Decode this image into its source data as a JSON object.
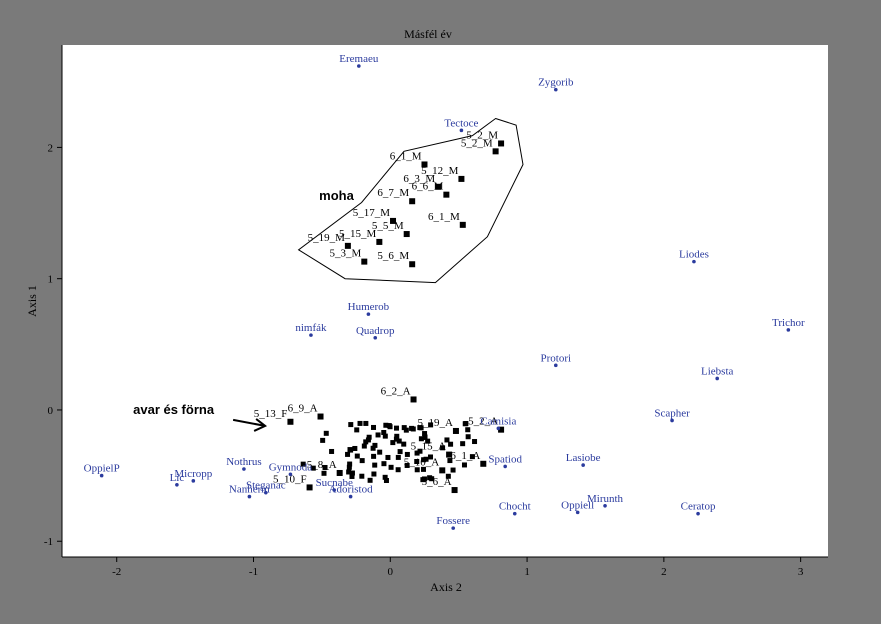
{
  "window": {
    "background_color": "#7a7a7a"
  },
  "chart_data": {
    "type": "scatter",
    "title": "Másfél év",
    "xlabel": "Axis 2",
    "ylabel": "Axis 1",
    "xlim": [
      -2.4,
      3.2
    ],
    "ylim": [
      -1.12,
      2.78
    ],
    "xticks": [
      -2,
      -1,
      0,
      1,
      2,
      3
    ],
    "yticks": [
      -1,
      0,
      1,
      2
    ],
    "xtick_labels": [
      "-2",
      "-1",
      "0",
      "1",
      "2",
      "3"
    ],
    "ytick_labels": [
      "-1",
      "0",
      "1",
      "2"
    ],
    "grid": false,
    "plot_background": "#ffffff",
    "species_color": "#2b3b9e",
    "site_color": "#000000",
    "species": [
      {
        "label": "Eremaeu",
        "x": -0.23,
        "y": 2.62
      },
      {
        "label": "Zygorib",
        "x": 1.21,
        "y": 2.44
      },
      {
        "label": "Tectoce",
        "x": 0.52,
        "y": 2.13
      },
      {
        "label": "Liodes",
        "x": 2.22,
        "y": 1.13
      },
      {
        "label": "Humerob",
        "x": -0.16,
        "y": 0.73
      },
      {
        "label": "nimfák",
        "x": -0.58,
        "y": 0.57
      },
      {
        "label": "Quadrop",
        "x": -0.11,
        "y": 0.55
      },
      {
        "label": "Trichor",
        "x": 2.91,
        "y": 0.61
      },
      {
        "label": "Protori",
        "x": 1.21,
        "y": 0.34
      },
      {
        "label": "Liebsta",
        "x": 2.39,
        "y": 0.24
      },
      {
        "label": "Scapher",
        "x": 2.06,
        "y": -0.08
      },
      {
        "label": "Camisia",
        "x": 0.79,
        "y": -0.14
      },
      {
        "label": "Lasiobe",
        "x": 1.41,
        "y": -0.42
      },
      {
        "label": "Nothrus",
        "x": -1.07,
        "y": -0.45
      },
      {
        "label": "Gymnoda",
        "x": -0.73,
        "y": -0.49
      },
      {
        "label": "Spatiod",
        "x": 0.84,
        "y": -0.43
      },
      {
        "label": "OppielP",
        "x": -2.11,
        "y": -0.5
      },
      {
        "label": "Micropp",
        "x": -1.44,
        "y": -0.54
      },
      {
        "label": "Lic",
        "x": -1.56,
        "y": -0.57
      },
      {
        "label": "Sucnabe",
        "x": -0.41,
        "y": -0.61
      },
      {
        "label": "Nanherm",
        "x": -1.03,
        "y": -0.66
      },
      {
        "label": "Steganac",
        "x": -0.91,
        "y": -0.63
      },
      {
        "label": "Adoristod",
        "x": -0.29,
        "y": -0.66
      },
      {
        "label": "Fossere",
        "x": 0.46,
        "y": -0.9
      },
      {
        "label": "Mirunth",
        "x": 1.57,
        "y": -0.73
      },
      {
        "label": "Oppiell",
        "x": 1.37,
        "y": -0.78
      },
      {
        "label": "Ceratop",
        "x": 2.25,
        "y": -0.79
      },
      {
        "label": "Chocht",
        "x": 0.91,
        "y": -0.79
      }
    ],
    "sites": [
      {
        "label": "5_2_M",
        "x": 0.81,
        "y": 2.03
      },
      {
        "label": "5_2_M",
        "x": 0.77,
        "y": 1.97
      },
      {
        "label": "6_1_M",
        "x": 0.25,
        "y": 1.87
      },
      {
        "label": "5_12_M",
        "x": 0.52,
        "y": 1.76
      },
      {
        "label": "6_3_M",
        "x": 0.35,
        "y": 1.7
      },
      {
        "label": "6_6_M",
        "x": 0.41,
        "y": 1.64
      },
      {
        "label": "6_7_M",
        "x": 0.16,
        "y": 1.59
      },
      {
        "label": "5_17_M",
        "x": 0.02,
        "y": 1.44
      },
      {
        "label": "5_5_M",
        "x": 0.12,
        "y": 1.34
      },
      {
        "label": "6_1_M",
        "x": 0.53,
        "y": 1.41
      },
      {
        "label": "5_19_M",
        "x": -0.31,
        "y": 1.25
      },
      {
        "label": "5_15_M",
        "x": -0.08,
        "y": 1.28
      },
      {
        "label": "5_3_M",
        "x": -0.19,
        "y": 1.13
      },
      {
        "label": "5_6_M",
        "x": 0.16,
        "y": 1.11
      },
      {
        "label": "6_2_A",
        "x": 0.17,
        "y": 0.08
      },
      {
        "label": "5_13_F",
        "x": -0.73,
        "y": -0.09
      },
      {
        "label": "6_9_A",
        "x": -0.51,
        "y": -0.05
      },
      {
        "label": "5_19_A",
        "x": 0.48,
        "y": -0.16
      },
      {
        "label": "5_2_A",
        "x": 0.81,
        "y": -0.15
      },
      {
        "label": "5_15_A",
        "x": 0.43,
        "y": -0.34
      },
      {
        "label": "5_8_A",
        "x": -0.37,
        "y": -0.48
      },
      {
        "label": "6_1_A",
        "x": 0.68,
        "y": -0.41
      },
      {
        "label": "5_10_F",
        "x": -0.59,
        "y": -0.59
      },
      {
        "label": "5_10_A",
        "x": 0.38,
        "y": -0.46
      },
      {
        "label": "5_6_A",
        "x": 0.47,
        "y": -0.61
      }
    ],
    "cluster_marks": {
      "count": 95,
      "center_x": 0.05,
      "center_y": -0.32,
      "spread_x": 0.52,
      "spread_y": 0.22
    },
    "annotations": [
      {
        "text": "moha",
        "x": -0.52,
        "y": 1.6
      },
      {
        "text": "avar és förna",
        "x": -1.88,
        "y": -0.03
      }
    ],
    "hull": [
      [
        0.77,
        2.22
      ],
      [
        0.92,
        2.17
      ],
      [
        0.97,
        1.87
      ],
      [
        0.71,
        1.32
      ],
      [
        0.33,
        0.97
      ],
      [
        -0.33,
        1.0
      ],
      [
        -0.67,
        1.22
      ],
      [
        -0.21,
        1.58
      ],
      [
        0.1,
        1.97
      ],
      [
        0.6,
        2.09
      ]
    ]
  }
}
